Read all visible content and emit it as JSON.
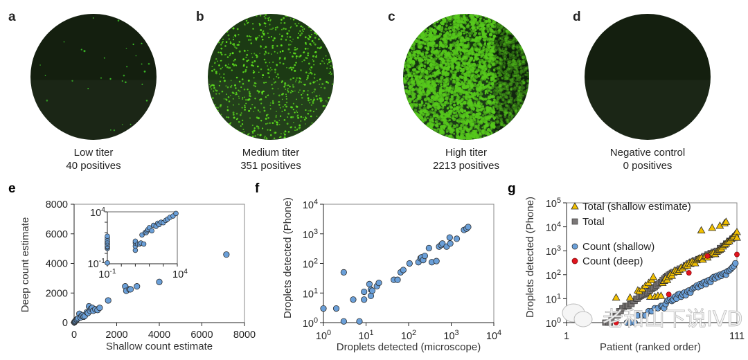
{
  "panels_top": [
    {
      "letter": "a",
      "title": "Low titer",
      "count": "40 positives",
      "density": 40,
      "bg": "#141f0f",
      "dot": "#3fcf2a"
    },
    {
      "letter": "b",
      "title": "Medium titer",
      "count": "351 positives",
      "density": 900,
      "bg": "#1c3a14",
      "dot": "#5fe21e"
    },
    {
      "letter": "c",
      "title": "High titer",
      "count": "2213 positives",
      "density": 3800,
      "bg": "#153510",
      "dot": "#56c81c"
    },
    {
      "letter": "d",
      "title": "Negative control",
      "count": "0 positives",
      "density": 0,
      "bg": "#141f0f",
      "dot": "#3fcf2a"
    }
  ],
  "colors": {
    "blue": "#6a9fd8",
    "yellow": "#f2c000",
    "gray": "#7b7777",
    "red": "#e0141e",
    "edge": "#2a2a2a"
  },
  "watermark": "老和山下说IVD",
  "chart_data": [
    {
      "id": "e",
      "letter": "e",
      "type": "scatter",
      "xlabel": "Shallow count estimate",
      "ylabel": "Deep count estimate",
      "xlim": [
        0,
        8000
      ],
      "ylim": [
        0,
        8000
      ],
      "xticks": [
        "0",
        "2000",
        "4000",
        "6000",
        "8000"
      ],
      "yticks": [
        "0",
        "2000",
        "4000",
        "6000",
        "8000"
      ],
      "x": [
        10,
        30,
        50,
        80,
        120,
        150,
        200,
        250,
        300,
        350,
        400,
        450,
        500,
        600,
        650,
        700,
        750,
        800,
        850,
        900,
        1000,
        1100,
        1200,
        1600,
        2400,
        2450,
        2600,
        2650,
        2950,
        4000,
        7150
      ],
      "y": [
        20,
        60,
        100,
        150,
        200,
        250,
        300,
        600,
        350,
        450,
        500,
        400,
        450,
        700,
        650,
        1100,
        800,
        950,
        1000,
        800,
        900,
        850,
        1000,
        1500,
        2450,
        2150,
        2250,
        2250,
        2450,
        2750,
        4600
      ],
      "inset": {
        "type": "scatter",
        "scale": "log",
        "xlim": [
          0.1,
          10000
        ],
        "ylim": [
          0.1,
          10000
        ],
        "xticks": [
          "10-1",
          "104"
        ],
        "yticks": [
          "10-1",
          "104"
        ],
        "x": [
          0.1,
          0.1,
          0.1,
          0.1,
          0.1,
          0.1,
          0.1,
          0.1,
          0.1,
          0.1,
          10,
          10,
          10,
          10,
          15,
          20,
          25,
          30,
          40,
          50,
          60,
          70,
          80,
          100,
          150,
          200,
          300,
          400,
          500,
          700,
          1000,
          1500,
          2000,
          3000,
          5000,
          8000
        ],
        "y": [
          0.12,
          3,
          4,
          5,
          7,
          10,
          14,
          20,
          30,
          45,
          2,
          5,
          10,
          15,
          8,
          8,
          10,
          60,
          8,
          100,
          100,
          150,
          200,
          300,
          150,
          500,
          400,
          800,
          600,
          1000,
          900,
          1500,
          2000,
          3000,
          4000,
          7000
        ]
      }
    },
    {
      "id": "f",
      "letter": "f",
      "type": "scatter",
      "scale": "log",
      "xlabel": "Droplets detected (microscope)",
      "ylabel": "Droplets detected (Phone)",
      "xlim": [
        1,
        10000
      ],
      "ylim": [
        1,
        10000
      ],
      "xticks": [
        "100",
        "101",
        "102",
        "103",
        "104"
      ],
      "yticks": [
        "100",
        "101",
        "102",
        "103",
        "104"
      ],
      "x": [
        1,
        2,
        3,
        3,
        5,
        7,
        9,
        9,
        12,
        13,
        13,
        14,
        18,
        20,
        45,
        55,
        65,
        75,
        105,
        170,
        190,
        200,
        220,
        240,
        300,
        350,
        450,
        520,
        580,
        620,
        780,
        920,
        950,
        1350,
        2000,
        2300,
        2500
      ],
      "y": [
        3,
        3,
        50,
        1.1,
        6,
        1.1,
        11,
        6,
        20,
        8,
        13,
        12,
        17,
        22,
        28,
        28,
        50,
        60,
        100,
        110,
        150,
        160,
        130,
        180,
        330,
        110,
        120,
        370,
        420,
        470,
        370,
        750,
        470,
        680,
        1350,
        1500,
        1700
      ]
    },
    {
      "id": "g",
      "letter": "g",
      "type": "scatter",
      "scale": "log-y",
      "xlabel": "Patient (ranked order)",
      "ylabel": "Droplets detected (Phone)",
      "xlim": [
        1,
        111
      ],
      "ylim": [
        1,
        100000
      ],
      "xticks": [
        "1",
        "111"
      ],
      "yticks": [
        "100",
        "101",
        "102",
        "103",
        "104",
        "105"
      ],
      "legend": [
        {
          "label": "Total (shallow estimate)",
          "marker": "triangle",
          "color": "yellow"
        },
        {
          "label": "Total",
          "marker": "square",
          "color": "gray"
        },
        {
          "label": "Count (shallow)",
          "marker": "circle",
          "color": "blue"
        },
        {
          "label": "Count (deep)",
          "marker": "circle",
          "color": "red"
        }
      ],
      "legend_position": "top-left",
      "series": [
        {
          "name": "Total",
          "marker": "square",
          "color": "gray",
          "x": [
            26,
            28,
            29,
            30,
            31,
            32,
            33,
            34,
            35,
            36,
            37,
            38,
            39,
            40,
            41,
            42,
            43,
            44,
            45,
            46,
            47,
            48,
            49,
            50,
            51,
            52,
            53,
            54,
            55,
            56,
            57,
            58,
            59,
            60,
            61,
            62,
            63,
            64,
            65,
            66,
            67,
            68,
            69,
            70,
            72,
            74,
            76,
            78,
            80,
            82,
            84,
            86,
            88,
            90,
            92,
            94,
            96,
            98,
            100,
            102,
            104,
            106,
            108,
            110
          ],
          "y": [
            1,
            1,
            1,
            1.5,
            2,
            2,
            2,
            2,
            3,
            3,
            4,
            4,
            5,
            5,
            5,
            6,
            6,
            8,
            8,
            10,
            10,
            12,
            13,
            14,
            15,
            16,
            18,
            20,
            22,
            25,
            28,
            30,
            35,
            40,
            45,
            50,
            60,
            70,
            80,
            90,
            100,
            110,
            120,
            130,
            150,
            180,
            200,
            250,
            300,
            350,
            400,
            450,
            500,
            600,
            700,
            800,
            900,
            1000,
            1300,
            1600,
            2000,
            2600,
            3200,
            4000
          ]
        },
        {
          "name": "Total (shallow estimate)",
          "marker": "triangle",
          "color": "yellow",
          "x": [
            33,
            42,
            47,
            48,
            50,
            52,
            54,
            55,
            56,
            57,
            58,
            60,
            62,
            63,
            64,
            65,
            66,
            67,
            68,
            69,
            70,
            71,
            72,
            73,
            74,
            75,
            76,
            77,
            78,
            79,
            80,
            81,
            82,
            83,
            84,
            85,
            86,
            87,
            88,
            89,
            90,
            91,
            92,
            93,
            94,
            95,
            96,
            97,
            98,
            99,
            100,
            101,
            102,
            103,
            104,
            105,
            106,
            107,
            108,
            109,
            110,
            111,
            111,
            88,
            95,
            100,
            103,
            104
          ],
          "y": [
            11,
            11,
            22,
            20,
            25,
            35,
            45,
            12,
            60,
            80,
            12,
            13,
            13,
            45,
            55,
            70,
            60,
            80,
            100,
            90,
            120,
            150,
            140,
            130,
            160,
            200,
            180,
            220,
            250,
            230,
            300,
            280,
            350,
            320,
            300,
            400,
            450,
            480,
            500,
            420,
            550,
            600,
            520,
            650,
            700,
            750,
            800,
            720,
            900,
            1000,
            1100,
            1200,
            1500,
            1800,
            2000,
            2300,
            2500,
            3000,
            3500,
            4000,
            5000,
            6000,
            3500,
            7000,
            9000,
            11000,
            14000,
            16000
          ]
        },
        {
          "name": "Count (shallow)",
          "marker": "circle",
          "color": "blue",
          "x": [
            40,
            42,
            45,
            47,
            50,
            52,
            54,
            56,
            58,
            60,
            62,
            63,
            64,
            65,
            66,
            67,
            68,
            69,
            70,
            71,
            72,
            73,
            74,
            75,
            76,
            77,
            78,
            79,
            80,
            81,
            82,
            83,
            84,
            85,
            86,
            87,
            88,
            89,
            90,
            91,
            92,
            93,
            94,
            95,
            96,
            97,
            98,
            99,
            100,
            101,
            102,
            103,
            104,
            105,
            106,
            107,
            108,
            109,
            110
          ],
          "y": [
            1,
            1,
            1,
            2,
            2,
            2,
            3,
            3,
            4,
            4,
            5,
            5,
            4,
            6,
            8,
            9,
            10,
            8,
            9,
            12,
            10,
            15,
            16,
            12,
            15,
            18,
            14,
            20,
            22,
            18,
            25,
            28,
            30,
            35,
            30,
            40,
            35,
            45,
            50,
            40,
            55,
            60,
            50,
            70,
            80,
            70,
            90,
            80,
            100,
            90,
            110,
            120,
            100,
            140,
            150,
            170,
            200,
            230,
            300
          ]
        },
        {
          "name": "Count (deep)",
          "marker": "circle",
          "color": "red",
          "x": [
            33,
            67,
            80,
            92,
            111
          ],
          "y": [
            1,
            15,
            120,
            600,
            700
          ]
        }
      ]
    }
  ]
}
